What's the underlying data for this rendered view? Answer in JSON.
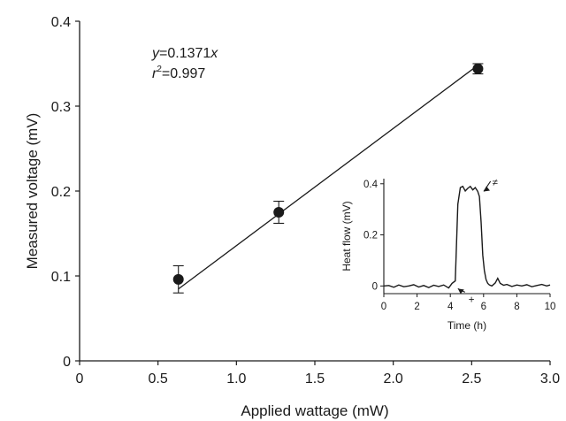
{
  "chart_data": [
    {
      "type": "scatter",
      "xlabel": "Applied wattage (mW)",
      "ylabel": "Measured voltage (mV)",
      "xlim": [
        0,
        3.0
      ],
      "ylim": [
        0,
        0.4
      ],
      "xticks": [
        "0",
        "0.5",
        "1.0",
        "1.5",
        "2.0",
        "2.5",
        "3.0"
      ],
      "yticks": [
        "0",
        "0.1",
        "0.2",
        "0.3",
        "0.4"
      ],
      "points": [
        {
          "x": 0.63,
          "y": 0.096,
          "err": 0.016
        },
        {
          "x": 1.27,
          "y": 0.175,
          "err": 0.013
        },
        {
          "x": 2.54,
          "y": 0.344,
          "err": 0.006
        }
      ],
      "fit": {
        "slope": 0.1371,
        "x_range": [
          0.63,
          2.54
        ]
      },
      "annotation": {
        "equation_var": "y",
        "equation_rest": "=0.1371",
        "equation_x": "x",
        "r2_var": "r",
        "r2_sup": "2",
        "r2_rest": "=0.997"
      },
      "grid": false
    },
    {
      "type": "line",
      "inset": true,
      "xlabel": "Time (h)",
      "ylabel": "Heat flow (mV)",
      "xlim": [
        0,
        10
      ],
      "ylim": [
        -0.03,
        0.42
      ],
      "xticks": [
        "0",
        "2",
        "4",
        "6",
        "8",
        "10"
      ],
      "yticks": [
        "0",
        "0.2",
        "0.4"
      ],
      "series": [
        {
          "x": [
            0,
            0.3,
            0.6,
            0.9,
            1.2,
            1.5,
            1.8,
            2.1,
            2.4,
            2.7,
            3.0,
            3.3,
            3.6,
            3.9,
            4.1,
            4.3,
            4.45,
            4.6,
            4.75,
            4.9,
            5.05,
            5.2,
            5.35,
            5.5,
            5.65,
            5.75,
            5.85,
            5.95,
            6.05,
            6.15,
            6.25,
            6.35,
            6.5,
            6.7,
            6.85,
            7.0,
            7.2,
            7.4,
            7.7,
            8.0,
            8.3,
            8.6,
            8.9,
            9.2,
            9.5,
            9.8,
            10.0
          ],
          "y": [
            0.0,
            0.002,
            -0.005,
            0.004,
            -0.003,
            0.0,
            0.005,
            -0.004,
            0.002,
            -0.006,
            0.003,
            -0.002,
            0.004,
            -0.008,
            0.01,
            0.02,
            0.32,
            0.385,
            0.39,
            0.372,
            0.382,
            0.39,
            0.376,
            0.385,
            0.37,
            0.35,
            0.25,
            0.12,
            0.06,
            0.025,
            0.01,
            0.004,
            0.0,
            0.012,
            0.03,
            0.01,
            0.003,
            0.006,
            -0.002,
            0.004,
            0.0,
            0.005,
            -0.003,
            0.002,
            0.006,
            0.0,
            0.004
          ]
        }
      ],
      "markers": [
        {
          "symbol": "≠",
          "x": 6.1,
          "y": 0.41
        },
        {
          "symbol": "+",
          "x": 5.2,
          "y": -0.045
        }
      ],
      "grid": false
    }
  ]
}
